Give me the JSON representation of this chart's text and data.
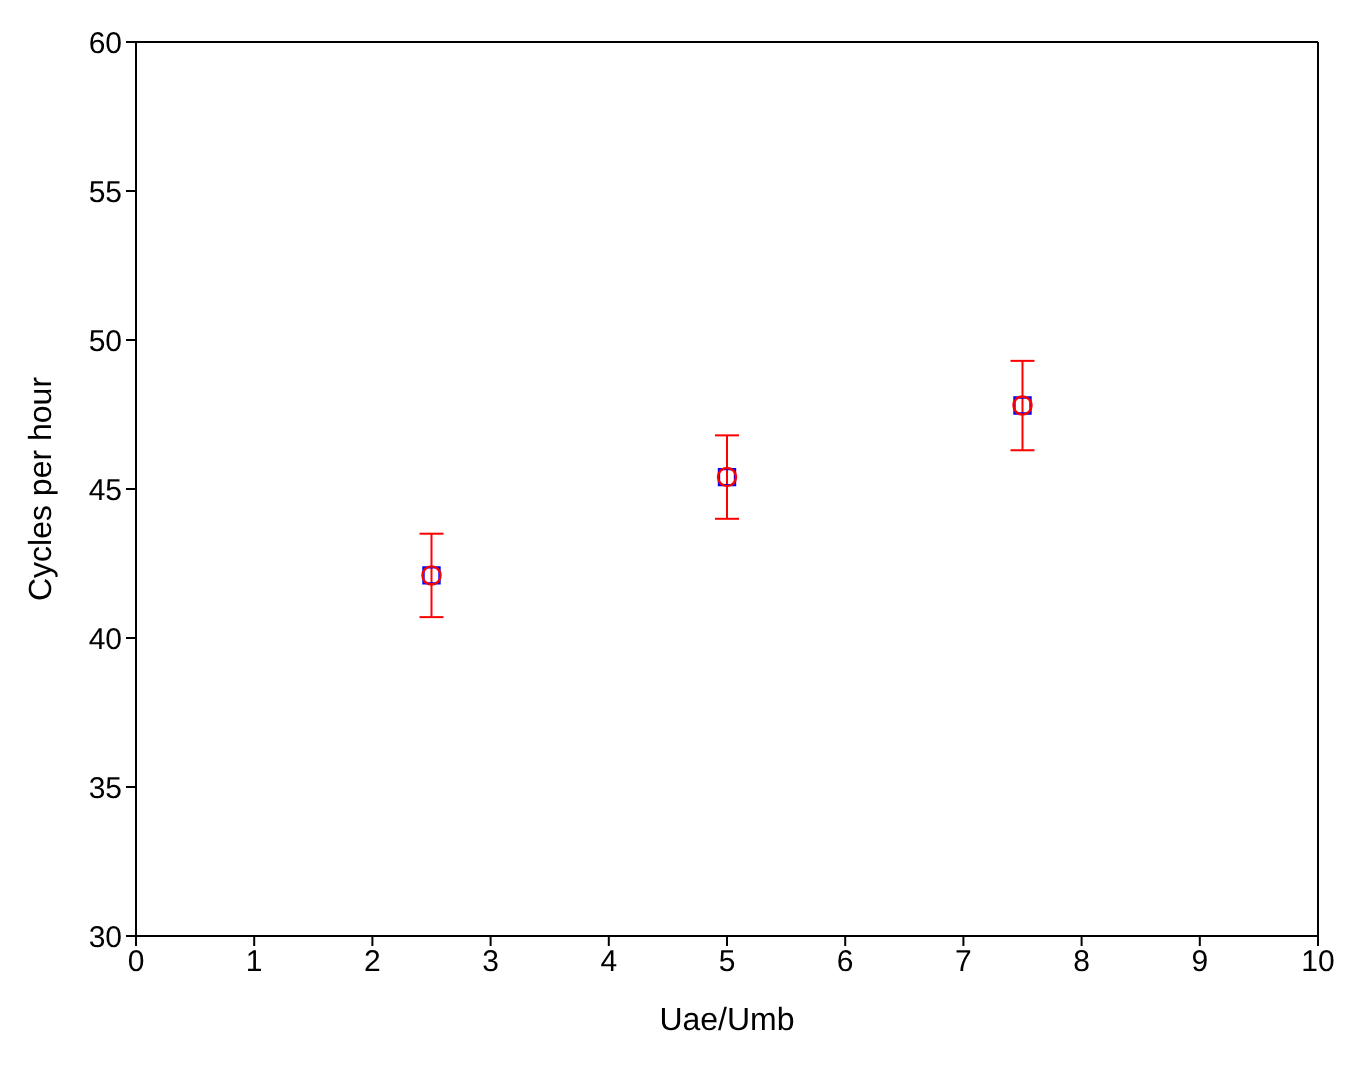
{
  "chart_data": {
    "type": "scatter",
    "xlabel": "Uae/Umb",
    "ylabel": "Cycles per hour",
    "x": [
      2.5,
      5,
      7.5
    ],
    "series": [
      {
        "color": "#0000ff",
        "marker": "square",
        "values": [
          42.1,
          45.4,
          47.8
        ]
      },
      {
        "color": "#ff0000",
        "marker": "circle",
        "values": [
          42.1,
          45.4,
          47.8
        ],
        "errors": [
          1.4,
          1.4,
          1.5
        ]
      }
    ],
    "xlim": [
      0,
      10
    ],
    "xticks": [
      0,
      1,
      2,
      3,
      4,
      5,
      6,
      7,
      8,
      9,
      10
    ],
    "ylim": [
      30,
      60
    ],
    "yticks": [
      30,
      35,
      40,
      45,
      50,
      55,
      60
    ],
    "legend": false
  }
}
